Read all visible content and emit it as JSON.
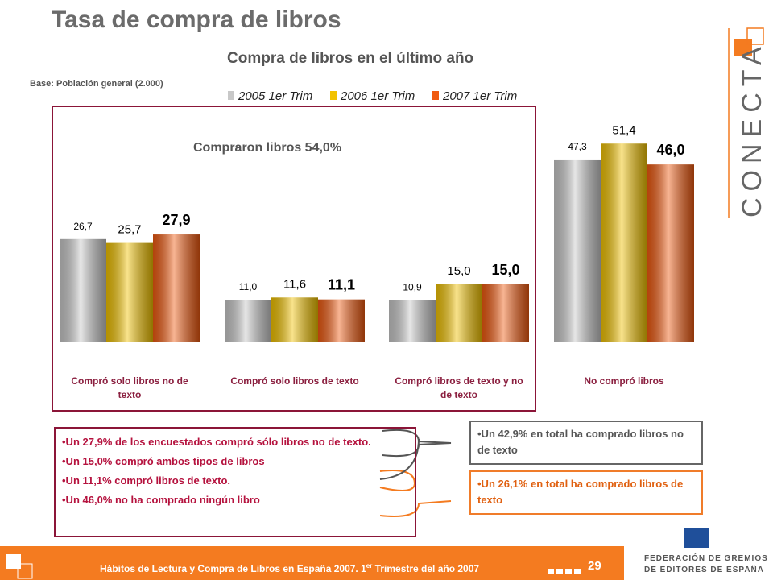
{
  "title": "Tasa de compra de libros",
  "base_note": "Base: Población general (2.000)",
  "chart_data": {
    "type": "bar",
    "title": "Compra de libros en el último año",
    "annotation": "Compraron libros 54,0%",
    "categories": [
      "Compró solo libros no de texto",
      "Compró solo libros de texto",
      "Compró libros de texto y no de texto",
      "No compró libros"
    ],
    "series": [
      {
        "name": "2005 1er Trim",
        "color": "#c8c8c8",
        "values": [
          26.7,
          11.0,
          10.9,
          47.3
        ],
        "value_labels": [
          "26,7",
          "11,0",
          "10,9",
          "47,3"
        ]
      },
      {
        "name": "2006 1er Trim",
        "color": "#f2c200",
        "values": [
          25.7,
          11.6,
          15.0,
          51.4
        ],
        "value_labels": [
          "25,7",
          "11,6",
          "15,0",
          "51,4"
        ]
      },
      {
        "name": "2007 1er Trim",
        "color": "#f05a10",
        "values": [
          27.9,
          11.1,
          15.0,
          46.0
        ],
        "value_labels": [
          "27,9",
          "11,1",
          "15,0",
          "46,0"
        ]
      }
    ]
  },
  "bullets": [
    "•Un 27,9% de los encuestados compró sólo libros no de texto.",
    "•Un 15,0% compró ambos tipos de libros",
    "•Un 11,1% compró libros de texto.",
    "•Un 46,0% no ha comprado ningún libro"
  ],
  "summary_boxes": [
    "•Un 42,9% en total ha comprado libros no de texto",
    "•Un 26,1% en total ha comprado libros de texto"
  ],
  "footer": {
    "text": "Hábitos de Lectura y Compra de Libros en España 2007. 1",
    "superscript": "er",
    "text_after": " Trimestre del año 2007"
  },
  "page_number": "29",
  "logo": "CONECTA",
  "publisher": [
    "FEDERACIÓN DE GREMIOS",
    "DE EDITORES DE ESPAÑA"
  ]
}
